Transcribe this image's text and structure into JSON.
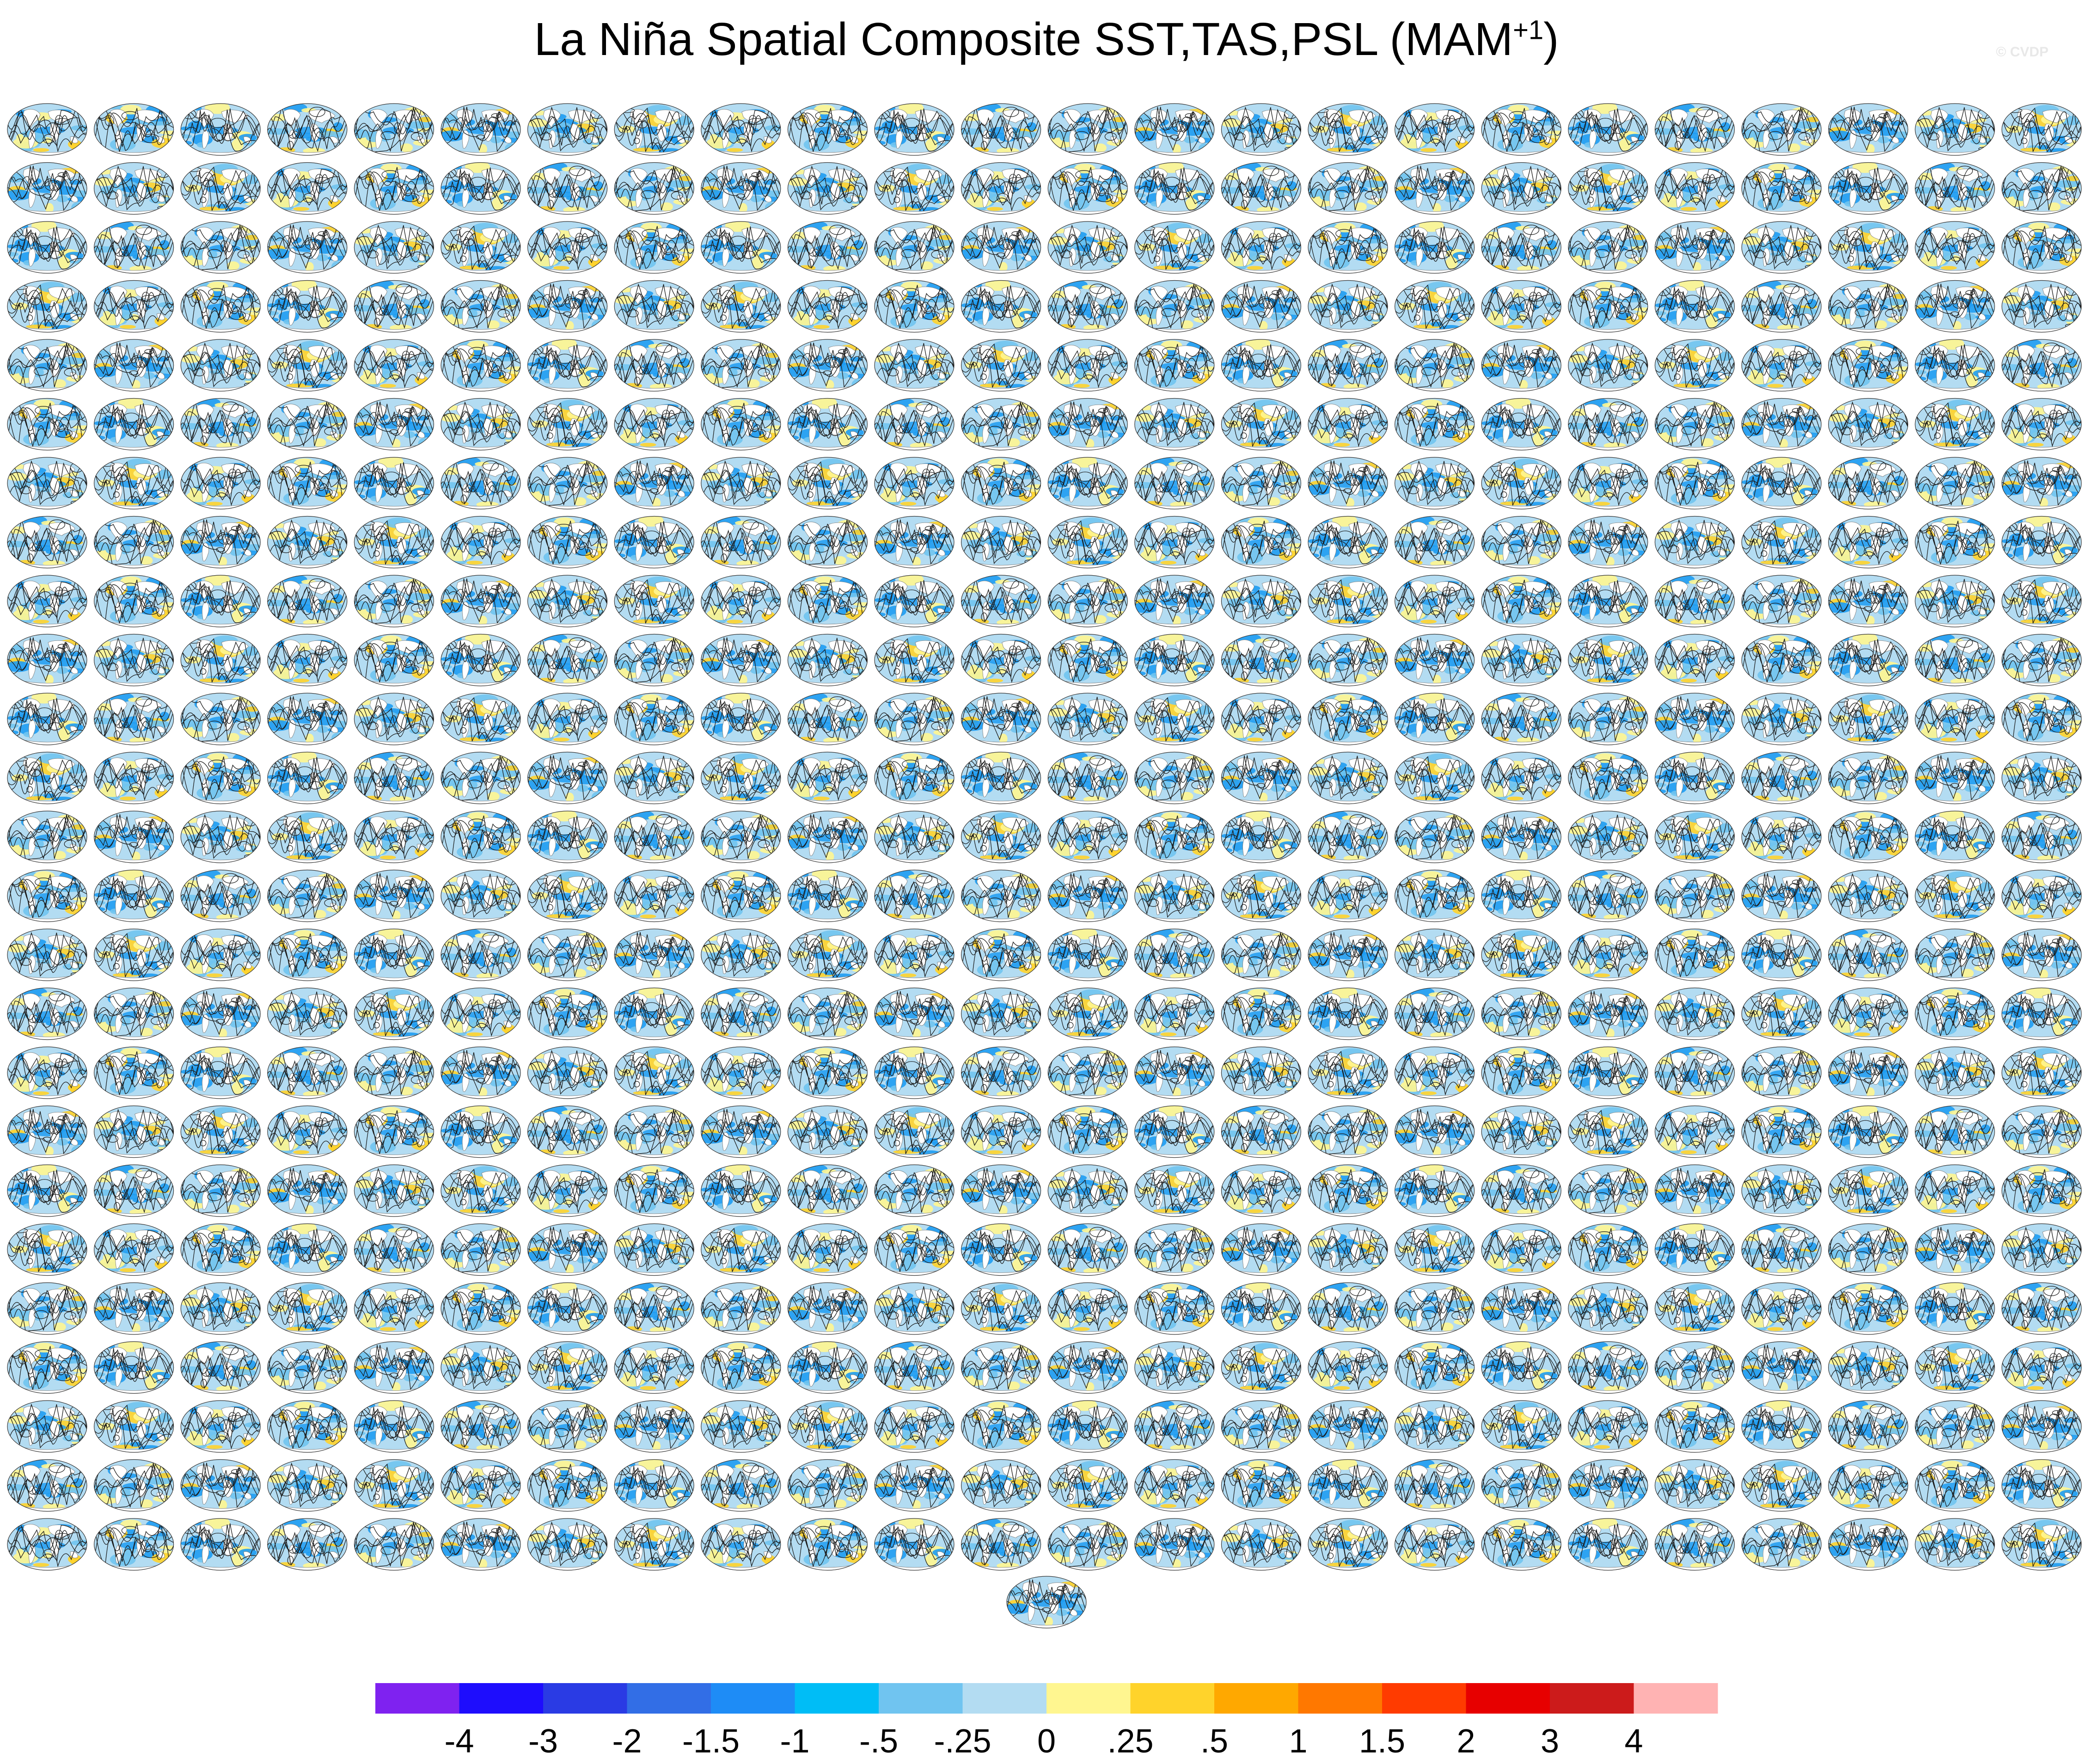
{
  "title": {
    "main": "La Niña Spatial Composite SST,TAS,PSL (MAM",
    "superscript": "+1",
    "close": ")"
  },
  "watermark": "© CVDP",
  "chart_data": {
    "type": "heatmap",
    "description_of_panels": "24 x 25 grid of global map panels plus one centered panel",
    "panel_rows": 25,
    "panel_cols": 24,
    "extra_panels": 1,
    "colorbar": {
      "levels": [
        "-4",
        "-3",
        "-2",
        "-1.5",
        "-1",
        "-.5",
        "-.25",
        "0",
        ".25",
        ".5",
        "1",
        "1.5",
        "2",
        "3",
        "4"
      ],
      "colors": [
        "#7f22f0",
        "#1e0dfd",
        "#2a3be4",
        "#326ee6",
        "#1e8cf6",
        "#00bdf6",
        "#70c4f0",
        "#b3dcf2",
        "#fff690",
        "#ffd32b",
        "#ffa800",
        "#ff7800",
        "#ff3b00",
        "#e70000",
        "#cc1b1b",
        "#ffb3b3"
      ]
    },
    "palette": {
      "cool_light": "#b3dcf2",
      "cool_mid": "#70c4f0",
      "cool_strong": "#1e9cf2",
      "warm_light": "#fff690",
      "warm_mid": "#ffd32b",
      "land": "#ffffff",
      "contour": "#1a1a1a"
    }
  }
}
